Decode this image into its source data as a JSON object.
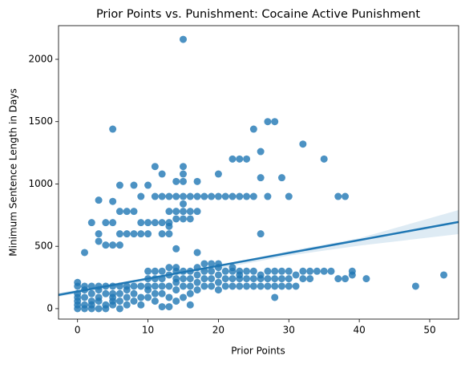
{
  "chart_data": {
    "type": "scatter",
    "title": "Prior Points vs. Punishment: Cocaine Active Punishment",
    "x_label": "Prior Points",
    "y_label": "Minimum Sentence Length in Days",
    "xlim": [
      -2.7,
      54.1
    ],
    "ylim": [
      -84,
      2270
    ],
    "xticks": [
      0,
      10,
      20,
      30,
      40,
      50
    ],
    "yticks": [
      0,
      500,
      1000,
      1500,
      2000
    ],
    "grid": false,
    "color": "#1f77b4",
    "x": [
      15,
      5,
      25,
      27,
      28,
      32,
      26,
      22,
      23,
      24,
      35,
      11,
      15,
      12,
      15,
      20,
      26,
      29,
      6,
      8,
      10,
      14,
      15,
      17,
      3,
      5,
      9,
      11,
      12,
      13,
      14,
      15,
      16,
      17,
      18,
      19,
      20,
      21,
      22,
      23,
      24,
      25,
      27,
      30,
      37,
      38,
      15,
      6,
      7,
      8,
      13,
      14,
      15,
      16,
      17,
      2,
      4,
      5,
      9,
      10,
      11,
      12,
      13,
      14,
      15,
      16,
      13,
      3,
      6,
      7,
      8,
      9,
      10,
      12,
      13,
      26,
      3,
      4,
      5,
      6,
      14,
      1,
      17,
      0,
      0,
      0,
      0,
      0,
      0,
      0,
      1,
      1,
      1,
      1,
      1,
      2,
      2,
      2,
      2,
      2,
      3,
      3,
      3,
      3,
      3,
      4,
      4,
      4,
      4,
      5,
      5,
      5,
      5,
      5,
      6,
      6,
      6,
      6,
      7,
      7,
      7,
      7,
      8,
      8,
      8,
      9,
      9,
      9,
      10,
      10,
      10,
      10,
      10,
      11,
      11,
      11,
      11,
      11,
      12,
      12,
      12,
      12,
      12,
      13,
      13,
      13,
      13,
      13,
      14,
      14,
      14,
      14,
      14,
      14,
      15,
      15,
      15,
      15,
      16,
      16,
      16,
      16,
      16,
      17,
      17,
      17,
      17,
      18,
      18,
      18,
      18,
      19,
      19,
      19,
      19,
      20,
      20,
      20,
      20,
      20,
      21,
      21,
      21,
      22,
      22,
      22,
      22,
      23,
      23,
      23,
      23,
      24,
      24,
      24,
      25,
      25,
      25,
      26,
      26,
      26,
      27,
      27,
      27,
      28,
      28,
      28,
      28,
      29,
      29,
      29,
      30,
      30,
      30,
      31,
      31,
      32,
      32,
      33,
      33,
      34,
      35,
      36,
      37,
      38,
      39,
      39,
      41,
      48,
      52
    ],
    "values": [
      2160,
      1440,
      1440,
      1500,
      1500,
      1320,
      1260,
      1200,
      1200,
      1200,
      1200,
      1140,
      1140,
      1080,
      1080,
      1080,
      1050,
      1050,
      990,
      990,
      990,
      1020,
      1020,
      1020,
      870,
      860,
      900,
      900,
      900,
      900,
      900,
      900,
      900,
      900,
      900,
      900,
      900,
      900,
      900,
      900,
      900,
      900,
      900,
      900,
      900,
      900,
      840,
      780,
      780,
      780,
      780,
      780,
      780,
      780,
      780,
      690,
      690,
      690,
      690,
      690,
      690,
      690,
      690,
      720,
      720,
      720,
      660,
      600,
      600,
      600,
      600,
      600,
      600,
      600,
      600,
      600,
      540,
      510,
      510,
      510,
      480,
      450,
      450,
      0,
      30,
      60,
      90,
      120,
      180,
      210,
      0,
      30,
      90,
      150,
      180,
      0,
      30,
      60,
      120,
      180,
      0,
      60,
      90,
      150,
      180,
      0,
      30,
      120,
      180,
      30,
      60,
      90,
      120,
      180,
      0,
      60,
      120,
      180,
      30,
      90,
      150,
      180,
      60,
      120,
      180,
      30,
      90,
      180,
      90,
      150,
      180,
      240,
      300,
      60,
      120,
      180,
      240,
      300,
      15,
      120,
      180,
      240,
      300,
      15,
      90,
      180,
      270,
      330,
      60,
      150,
      210,
      240,
      300,
      330,
      90,
      180,
      240,
      300,
      30,
      120,
      180,
      240,
      300,
      150,
      210,
      270,
      330,
      180,
      240,
      300,
      360,
      180,
      240,
      300,
      360,
      150,
      210,
      270,
      330,
      360,
      180,
      240,
      300,
      180,
      240,
      300,
      330,
      180,
      240,
      270,
      300,
      180,
      240,
      300,
      180,
      240,
      300,
      180,
      240,
      270,
      180,
      240,
      300,
      90,
      180,
      240,
      300,
      180,
      240,
      300,
      180,
      240,
      300,
      180,
      270,
      240,
      300,
      240,
      300,
      300,
      300,
      300,
      240,
      240,
      270,
      300,
      240,
      180,
      270
    ],
    "regression": {
      "x": [
        -2.7,
        54.1
      ],
      "y": [
        110,
        695
      ]
    },
    "ci": {
      "x": [
        -2.7,
        10,
        20,
        30,
        40,
        54.1
      ],
      "lower": [
        95,
        225,
        320,
        425,
        505,
        598
      ],
      "upper": [
        125,
        250,
        345,
        462,
        565,
        791
      ]
    }
  }
}
